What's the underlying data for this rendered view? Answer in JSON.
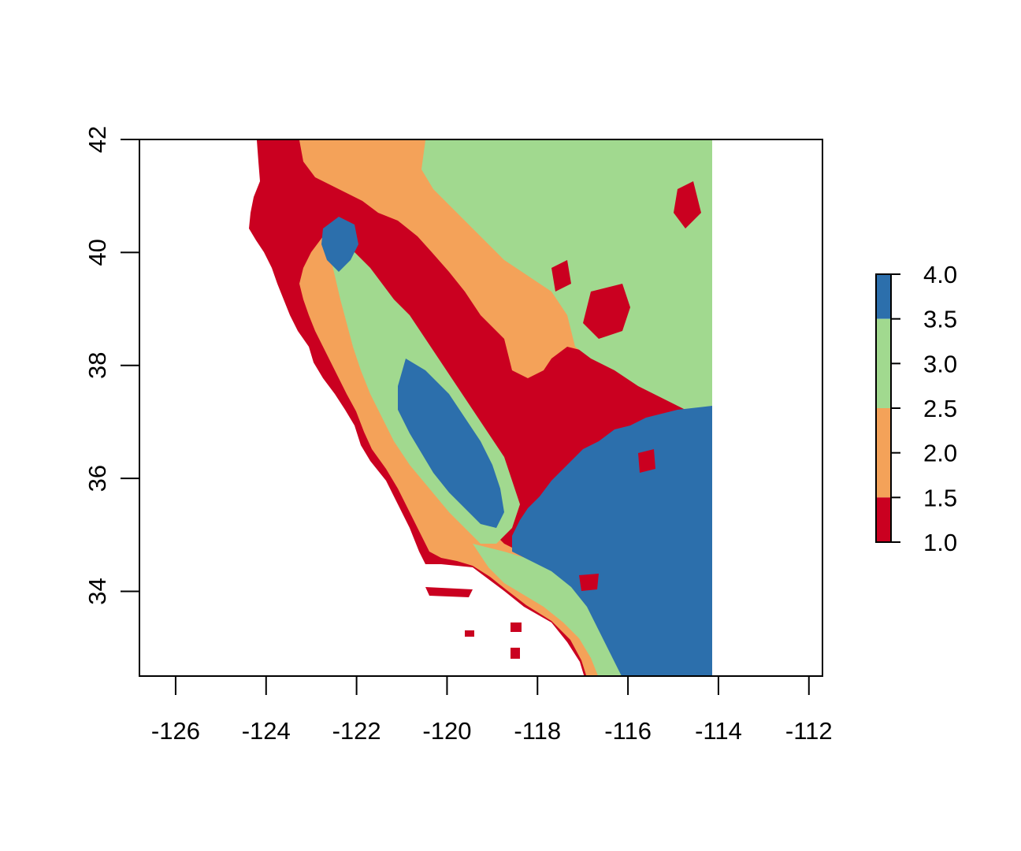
{
  "map": {
    "x_ticks": [
      "-126",
      "-124",
      "-122",
      "-120",
      "-118",
      "-116",
      "-114",
      "-112"
    ],
    "y_ticks": [
      "34",
      "36",
      "38",
      "40",
      "42"
    ],
    "x_tick_values": [
      -126,
      -124,
      -122,
      -120,
      -118,
      -116,
      -114,
      -112
    ],
    "y_tick_values": [
      34,
      36,
      38,
      40,
      42
    ],
    "xlim": [
      -126.8,
      -111.7
    ],
    "ylim": [
      32.5,
      42.0
    ],
    "data_extent": {
      "lon_min": -124.4,
      "lon_max": -114.1,
      "lat_min": 32.5,
      "lat_max": 42.0
    },
    "classes": [
      {
        "range": [
          1.0,
          1.5
        ],
        "color": "#ca0020"
      },
      {
        "range": [
          1.5,
          2.5
        ],
        "color": "#f4a259"
      },
      {
        "range": [
          2.5,
          3.5
        ],
        "color": "#a1d98f"
      },
      {
        "range": [
          3.5,
          4.0
        ],
        "color": "#2c6fac"
      }
    ]
  },
  "legend": {
    "labels": [
      "4.0",
      "3.5",
      "3.0",
      "2.5",
      "2.0",
      "1.5",
      "1.0"
    ],
    "colors_top_to_bottom": [
      "#2c6fac",
      "#a1d98f",
      "#f4a259",
      "#ca0020"
    ]
  }
}
